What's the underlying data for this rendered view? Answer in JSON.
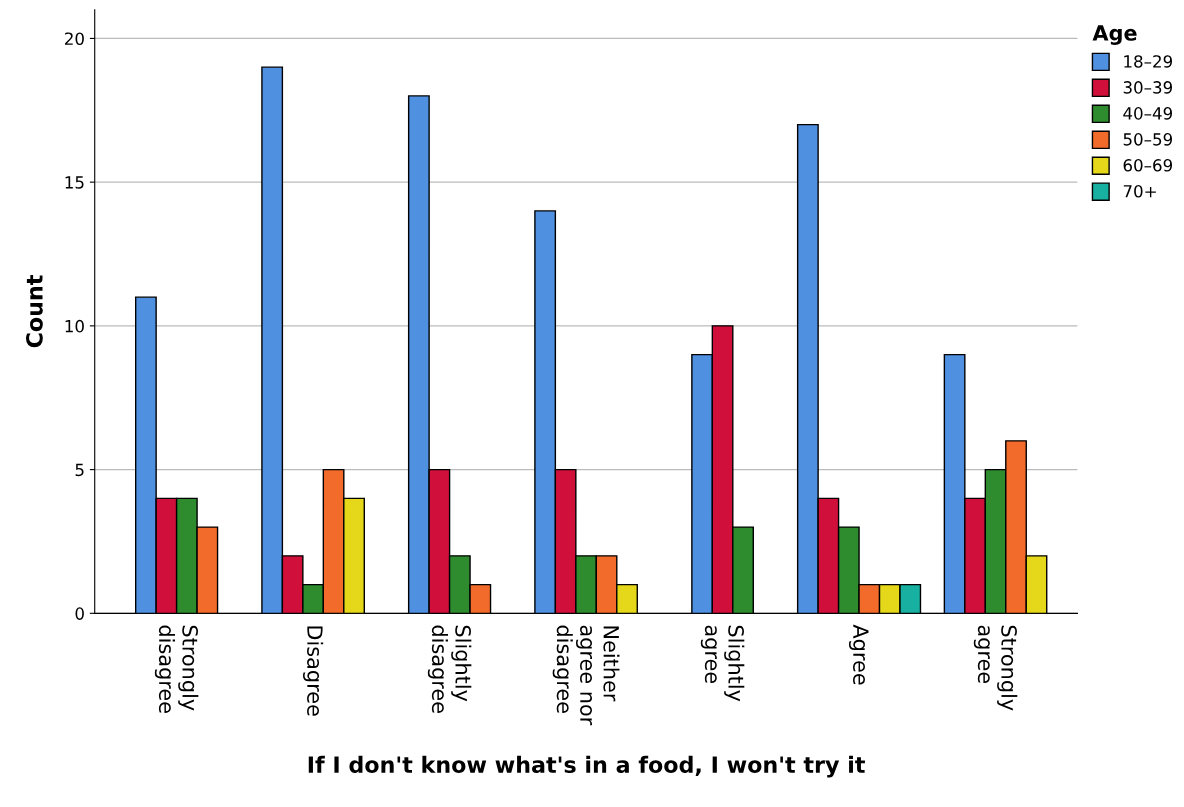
{
  "chart_data": {
    "type": "bar",
    "xlabel": "If I don't know what's in a food, I won't try it",
    "ylabel": "Count",
    "legend_title": "Age",
    "legend": "top right",
    "grid": "y",
    "categories": [
      "Strongly\ndisagree",
      "Disagree",
      "Slightly\ndisagree",
      "Neither\nagree nor\ndisagree",
      "Slightly\nagree",
      "Agree",
      "Strongly\nagree"
    ],
    "ylim": [
      0,
      21
    ],
    "yticks": [
      0,
      5,
      10,
      15,
      20
    ],
    "series": [
      {
        "name": "18–29",
        "color": "#4f90e0",
        "values": [
          11,
          19,
          18,
          14,
          9,
          17,
          9
        ]
      },
      {
        "name": "30–39",
        "color": "#d0103a",
        "values": [
          4,
          2,
          5,
          5,
          10,
          4,
          4
        ]
      },
      {
        "name": "40–49",
        "color": "#2e8b2e",
        "values": [
          4,
          1,
          2,
          2,
          3,
          3,
          5
        ]
      },
      {
        "name": "50–59",
        "color": "#f26b2a",
        "values": [
          3,
          5,
          1,
          2,
          null,
          1,
          6
        ]
      },
      {
        "name": "60–69",
        "color": "#e5d81a",
        "values": [
          null,
          4,
          null,
          1,
          null,
          1,
          2
        ]
      },
      {
        "name": "70+",
        "color": "#18b0a0",
        "values": [
          null,
          null,
          null,
          null,
          null,
          1,
          null
        ]
      }
    ]
  }
}
